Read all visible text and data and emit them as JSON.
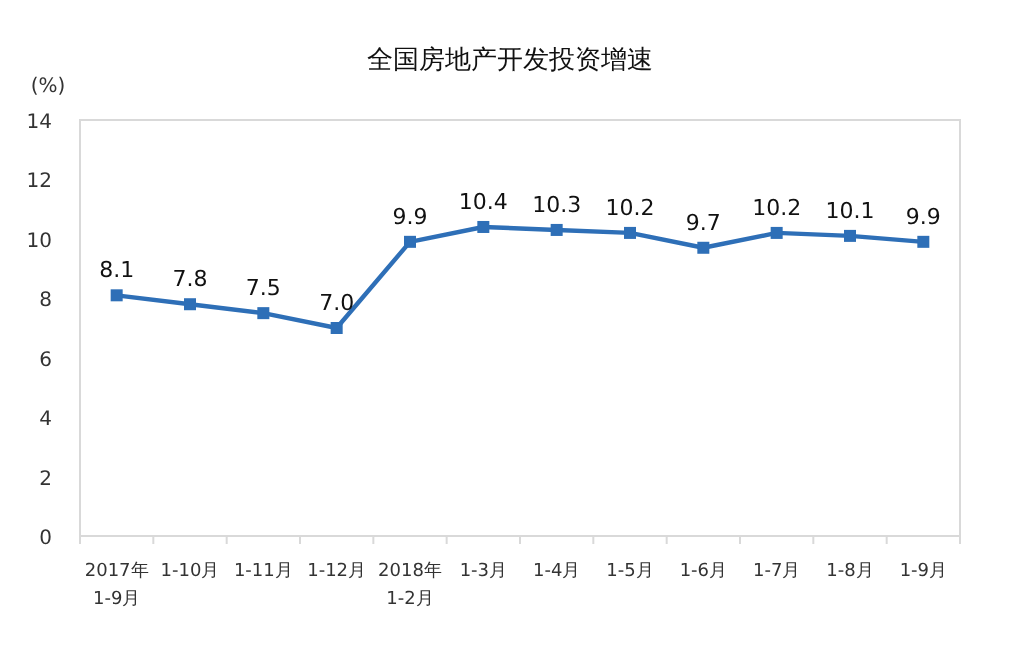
{
  "chart_data": {
    "type": "line",
    "title": "全国房地产开发投资增速",
    "ylabel": "(%)",
    "categories": [
      "2017年\n1-9月",
      "1-10月",
      "1-11月",
      "1-12月",
      "2018年\n1-2月",
      "1-3月",
      "1-4月",
      "1-5月",
      "1-6月",
      "1-7月",
      "1-8月",
      "1-9月"
    ],
    "series": [
      {
        "color": "#2e6fb7",
        "values": [
          8.1,
          7.8,
          7.5,
          7.0,
          9.9,
          10.4,
          10.3,
          10.2,
          9.7,
          10.2,
          10.1,
          9.9
        ],
        "value_labels": [
          "8.1",
          "7.8",
          "7.5",
          "7.0",
          "9.9",
          "10.4",
          "10.3",
          "10.2",
          "9.7",
          "10.2",
          "10.1",
          "9.9"
        ]
      }
    ],
    "ylim": [
      0,
      14
    ],
    "yticks": [
      0,
      2,
      4,
      6,
      8,
      10,
      12,
      14
    ],
    "marker": "square",
    "grid": false
  }
}
